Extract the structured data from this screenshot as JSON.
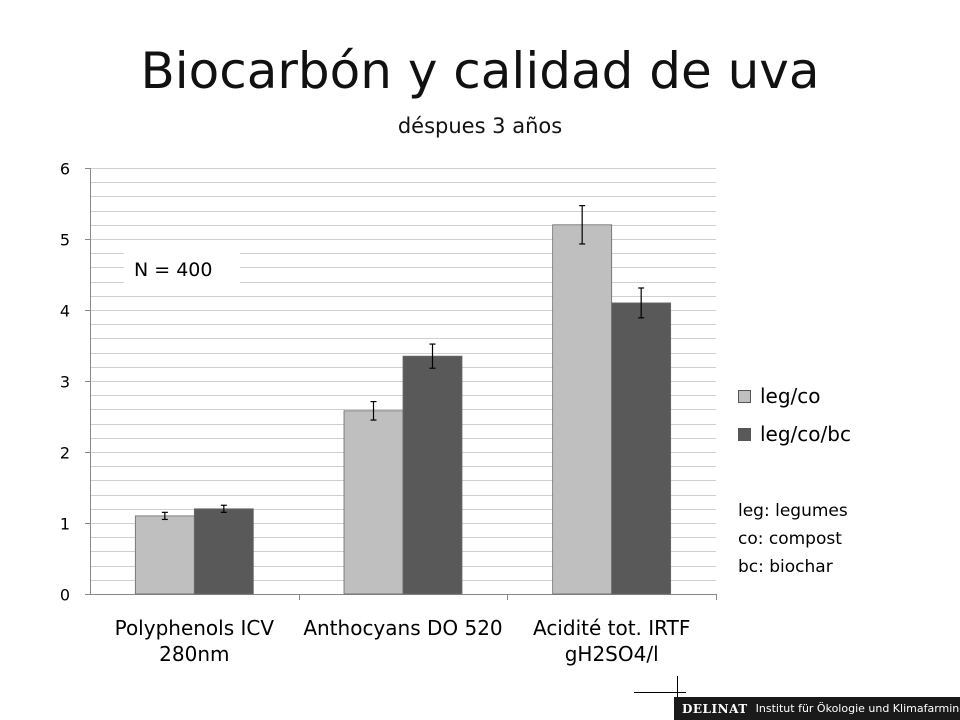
{
  "chart_data": {
    "type": "bar",
    "title": "Biocarbón y calidad de uva",
    "subtitle": "déspues 3 años",
    "categories": [
      [
        "Polyphenols ICV",
        "280nm"
      ],
      [
        "Anthocyans DO 520"
      ],
      [
        "Acidité tot. IRTF",
        "gH2SO4/l"
      ]
    ],
    "series": [
      {
        "name": "leg/co",
        "values": [
          1.1,
          2.58,
          5.2
        ],
        "errors": [
          0.05,
          0.13,
          0.27
        ],
        "color": "#bfbfbf"
      },
      {
        "name": "leg/co/bc",
        "values": [
          1.2,
          3.35,
          4.1
        ],
        "errors": [
          0.05,
          0.17,
          0.21
        ],
        "color": "#595959"
      }
    ],
    "ylim": [
      0,
      6
    ],
    "yticks": [
      0,
      1,
      2,
      3,
      4,
      5,
      6
    ],
    "grid": true,
    "legend": "right",
    "annotation": "N = 400"
  },
  "notes": [
    "leg: legumes",
    "co: compost",
    "bc: biochar"
  ],
  "footer": {
    "logo": "DELINAT",
    "text": "Institut für Ökologie und Klimafarming"
  }
}
